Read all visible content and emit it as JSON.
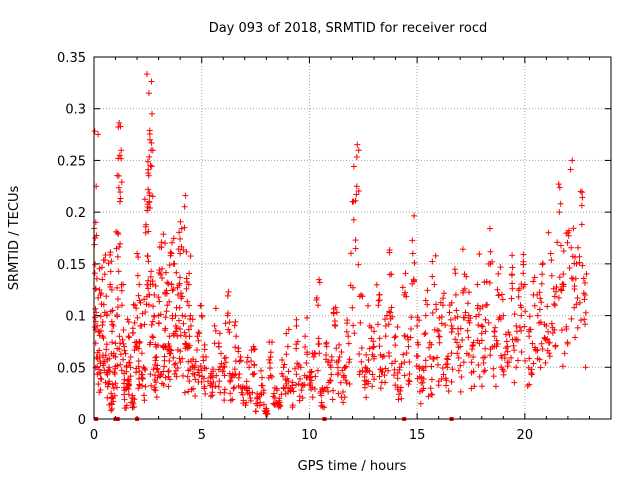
{
  "chart_data": {
    "type": "scatter",
    "title": "Day 093 of 2018, SRMTID for receiver rocd",
    "xlabel": "GPS time / hours",
    "ylabel": "SRMTID / TECUs",
    "xlim": [
      0,
      24
    ],
    "ylim": [
      0,
      0.35
    ],
    "xticks": [
      0,
      5,
      10,
      15,
      20
    ],
    "xtick_labels": [
      "0",
      "5",
      "10",
      "15",
      "20"
    ],
    "yticks": [
      0,
      0.05,
      0.1,
      0.15,
      0.2,
      0.25,
      0.3,
      0.35
    ],
    "ytick_labels": [
      "0",
      "0.05",
      "0.1",
      "0.15",
      "0.2",
      "0.25",
      "0.3",
      "0.35"
    ],
    "grid": true,
    "marker": "plus",
    "series": [
      {
        "name": "SRMTID",
        "color": "#ff0000",
        "x": [
          0.05,
          0.1,
          0.15,
          0.25,
          0.3,
          0.4,
          0.5,
          0.6,
          0.7,
          0.75,
          0.8,
          0.9,
          1.0,
          1.1,
          1.15,
          1.2,
          1.3,
          1.4,
          1.5,
          1.6,
          1.7,
          1.8,
          1.9,
          2.0,
          2.1,
          2.2,
          2.3,
          2.4,
          2.5,
          2.55,
          2.6,
          2.65,
          2.7,
          2.8,
          2.9,
          3.0,
          3.1,
          3.2,
          3.3,
          3.4,
          3.5,
          3.6,
          3.7,
          3.8,
          3.9,
          4.0,
          4.1,
          4.2,
          4.3,
          4.4,
          4.5,
          4.6,
          4.8,
          5.0,
          5.2,
          5.4,
          5.6,
          5.8,
          6.0,
          6.2,
          6.4,
          6.6,
          6.8,
          7.0,
          7.2,
          7.4,
          7.6,
          7.8,
          8.0,
          8.2,
          8.4,
          8.6,
          8.8,
          9.0,
          9.2,
          9.4,
          9.6,
          9.8,
          10.0,
          10.2,
          10.4,
          10.6,
          10.8,
          11.0,
          11.2,
          11.4,
          11.6,
          11.8,
          12.0,
          12.2,
          12.4,
          12.6,
          12.8,
          13.0,
          13.2,
          13.4,
          13.6,
          13.8,
          14.0,
          14.2,
          14.4,
          14.6,
          14.8,
          15.0,
          15.2,
          15.4,
          15.6,
          15.8,
          16.0,
          16.2,
          16.4,
          16.6,
          16.8,
          17.0,
          17.2,
          17.4,
          17.6,
          17.8,
          18.0,
          18.2,
          18.4,
          18.6,
          18.8,
          19.0,
          19.2,
          19.4,
          19.6,
          19.8,
          20.0,
          20.2,
          20.4,
          20.6,
          20.8,
          21.0,
          21.2,
          21.4,
          21.6,
          21.8,
          22.0,
          22.2,
          22.4,
          22.6,
          22.8
        ],
        "y": [
          0.175,
          0.225,
          0.09,
          0.06,
          0.12,
          0.08,
          0.14,
          0.1,
          0.05,
          0.13,
          0.02,
          0.09,
          0.06,
          0.18,
          0.235,
          0.255,
          0.11,
          0.07,
          0.03,
          0.08,
          0.05,
          0.02,
          0.11,
          0.07,
          0.13,
          0.09,
          0.05,
          0.18,
          0.205,
          0.315,
          0.27,
          0.26,
          0.08,
          0.12,
          0.06,
          0.1,
          0.14,
          0.07,
          0.17,
          0.11,
          0.08,
          0.13,
          0.15,
          0.09,
          0.12,
          0.16,
          0.1,
          0.185,
          0.07,
          0.13,
          0.09,
          0.05,
          0.08,
          0.1,
          0.06,
          0.04,
          0.09,
          0.07,
          0.05,
          0.1,
          0.04,
          0.08,
          0.06,
          0.03,
          0.05,
          0.07,
          0.02,
          0.04,
          0.01,
          0.06,
          0.03,
          0.02,
          0.05,
          0.07,
          0.03,
          0.09,
          0.05,
          0.08,
          0.04,
          0.06,
          0.11,
          0.03,
          0.07,
          0.05,
          0.09,
          0.06,
          0.04,
          0.08,
          0.21,
          0.225,
          0.12,
          0.05,
          0.09,
          0.07,
          0.11,
          0.06,
          0.1,
          0.14,
          0.08,
          0.05,
          0.12,
          0.07,
          0.16,
          0.09,
          0.04,
          0.1,
          0.06,
          0.13,
          0.08,
          0.11,
          0.05,
          0.09,
          0.12,
          0.07,
          0.14,
          0.1,
          0.06,
          0.13,
          0.09,
          0.11,
          0.15,
          0.08,
          0.12,
          0.1,
          0.07,
          0.14,
          0.09,
          0.11,
          0.13,
          0.08,
          0.12,
          0.1,
          0.14,
          0.09,
          0.16,
          0.11,
          0.2,
          0.13,
          0.18,
          0.25,
          0.15,
          0.22,
          0.12
        ],
        "min_markers_x": [
          0.1,
          1.0,
          1.1,
          2.0,
          10.7,
          14.4,
          16.6
        ]
      }
    ]
  }
}
